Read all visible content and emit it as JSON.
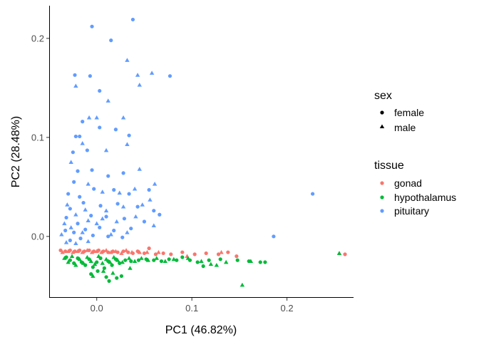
{
  "chart_data": {
    "type": "scatter",
    "title": "",
    "xlabel": "PC1 (46.82%)",
    "ylabel": "PC2 (28.48%)",
    "xlim": [
      -0.05,
      0.27
    ],
    "ylim": [
      -0.062,
      0.233
    ],
    "x_ticks": [
      0.0,
      0.1,
      0.2
    ],
    "x_tick_labels": [
      "0.0",
      "0.1",
      "0.2"
    ],
    "y_ticks": [
      0.0,
      0.1,
      0.2
    ],
    "y_tick_labels": [
      "0.0",
      "0.1",
      "0.2"
    ],
    "grid": false,
    "legend_position": "right",
    "colors": {
      "gonad": "#F8766D",
      "hypothalamus": "#00BA38",
      "pituitary": "#619CFF"
    },
    "shape_legend": {
      "title": "sex",
      "items": [
        {
          "label": "female",
          "shape": "circle"
        },
        {
          "label": "male",
          "shape": "triangle"
        }
      ]
    },
    "color_legend": {
      "title": "tissue",
      "items": [
        "gonad",
        "hypothalamus",
        "pituitary"
      ]
    },
    "series": [
      {
        "tissue": "pituitary",
        "sex": "female",
        "points": [
          [
            -0.005,
            0.212
          ],
          [
            0.015,
            0.198
          ],
          [
            0.038,
            0.219
          ],
          [
            0.077,
            0.162
          ],
          [
            -0.023,
            0.163
          ],
          [
            -0.007,
            0.162
          ],
          [
            0.003,
            0.147
          ],
          [
            -0.015,
            0.116
          ],
          [
            -0.022,
            0.101
          ],
          [
            -0.018,
            0.101
          ],
          [
            -0.025,
            0.085
          ],
          [
            0.003,
            0.11
          ],
          [
            0.02,
            0.108
          ],
          [
            0.034,
            0.102
          ],
          [
            -0.01,
            0.087
          ],
          [
            -0.02,
            0.066
          ],
          [
            -0.024,
            0.055
          ],
          [
            -0.005,
            0.067
          ],
          [
            0.012,
            0.061
          ],
          [
            0.028,
            0.064
          ],
          [
            -0.03,
            0.043
          ],
          [
            -0.018,
            0.04
          ],
          [
            -0.003,
            0.048
          ],
          [
            0.018,
            0.047
          ],
          [
            0.034,
            0.043
          ],
          [
            0.055,
            0.047
          ],
          [
            -0.028,
            0.028
          ],
          [
            -0.014,
            0.034
          ],
          [
            0.004,
            0.031
          ],
          [
            0.022,
            0.033
          ],
          [
            0.043,
            0.03
          ],
          [
            0.06,
            0.026
          ],
          [
            -0.032,
            0.019
          ],
          [
            -0.02,
            0.013
          ],
          [
            -0.006,
            0.021
          ],
          [
            0.01,
            0.02
          ],
          [
            0.029,
            0.018
          ],
          [
            0.05,
            0.015
          ],
          [
            0.066,
            0.022
          ],
          [
            -0.033,
            0.006
          ],
          [
            -0.024,
            0.004
          ],
          [
            -0.012,
            0.007
          ],
          [
            0.003,
            0.009
          ],
          [
            0.018,
            0.006
          ],
          [
            0.036,
            0.008
          ],
          [
            -0.028,
            -0.004
          ],
          [
            -0.017,
            -0.002
          ],
          [
            -0.004,
            0.001
          ],
          [
            0.012,
            0.0
          ],
          [
            0.027,
            -0.001
          ],
          [
            0.227,
            0.043
          ],
          [
            0.186,
            0.0
          ]
        ]
      },
      {
        "tissue": "pituitary",
        "sex": "male",
        "points": [
          [
            0.032,
            0.178
          ],
          [
            -0.022,
            0.152
          ],
          [
            0.012,
            0.137
          ],
          [
            0.043,
            0.163
          ],
          [
            0.058,
            0.165
          ],
          [
            0.045,
            0.153
          ],
          [
            0.0,
            0.12
          ],
          [
            -0.008,
            0.12
          ],
          [
            0.028,
            0.12
          ],
          [
            -0.015,
            0.094
          ],
          [
            0.01,
            0.087
          ],
          [
            0.032,
            0.093
          ],
          [
            0.045,
            0.068
          ],
          [
            -0.027,
            0.075
          ],
          [
            -0.009,
            0.053
          ],
          [
            0.006,
            0.045
          ],
          [
            0.024,
            0.044
          ],
          [
            0.04,
            0.048
          ],
          [
            0.056,
            0.037
          ],
          [
            0.061,
            0.053
          ],
          [
            -0.031,
            0.032
          ],
          [
            -0.012,
            0.027
          ],
          [
            0.01,
            0.026
          ],
          [
            0.028,
            0.03
          ],
          [
            0.048,
            0.032
          ],
          [
            -0.034,
            0.013
          ],
          [
            -0.022,
            0.022
          ],
          [
            -0.009,
            0.016
          ],
          [
            0.006,
            0.018
          ],
          [
            0.021,
            0.015
          ],
          [
            0.041,
            0.02
          ],
          [
            0.06,
            0.011
          ],
          [
            -0.037,
            0.002
          ],
          [
            -0.027,
            0.009
          ],
          [
            -0.015,
            0.004
          ],
          [
            0.0,
            0.013
          ],
          [
            0.015,
            0.002
          ],
          [
            0.032,
            0.004
          ],
          [
            -0.032,
            -0.006
          ],
          [
            -0.022,
            -0.007
          ],
          [
            -0.009,
            -0.005
          ]
        ]
      },
      {
        "tissue": "gonad",
        "sex": "female",
        "points": [
          [
            -0.038,
            -0.014
          ],
          [
            -0.033,
            -0.015
          ],
          [
            -0.028,
            -0.014
          ],
          [
            -0.023,
            -0.015
          ],
          [
            -0.018,
            -0.014
          ],
          [
            -0.013,
            -0.015
          ],
          [
            -0.008,
            -0.014
          ],
          [
            -0.003,
            -0.015
          ],
          [
            0.002,
            -0.014
          ],
          [
            0.007,
            -0.015
          ],
          [
            0.012,
            -0.016
          ],
          [
            0.017,
            -0.015
          ],
          [
            0.022,
            -0.016
          ],
          [
            0.028,
            -0.015
          ],
          [
            0.033,
            -0.016
          ],
          [
            0.038,
            -0.017
          ],
          [
            0.043,
            -0.015
          ],
          [
            0.05,
            -0.017
          ],
          [
            0.055,
            -0.012
          ],
          [
            0.062,
            -0.018
          ],
          [
            0.07,
            -0.017
          ],
          [
            0.078,
            -0.018
          ],
          [
            0.09,
            -0.016
          ],
          [
            0.103,
            -0.018
          ],
          [
            0.115,
            -0.017
          ],
          [
            0.128,
            -0.018
          ],
          [
            0.138,
            -0.016
          ],
          [
            0.147,
            -0.02
          ],
          [
            0.261,
            -0.018
          ]
        ]
      },
      {
        "tissue": "gonad",
        "sex": "male",
        "points": [
          [
            -0.036,
            -0.016
          ],
          [
            -0.03,
            -0.015
          ],
          [
            -0.025,
            -0.016
          ],
          [
            -0.02,
            -0.015
          ],
          [
            -0.015,
            -0.016
          ],
          [
            -0.01,
            -0.014
          ],
          [
            -0.005,
            -0.016
          ],
          [
            0.0,
            -0.015
          ],
          [
            0.005,
            -0.016
          ],
          [
            0.01,
            -0.014
          ],
          [
            0.015,
            -0.016
          ],
          [
            0.02,
            -0.015
          ],
          [
            0.026,
            -0.017
          ],
          [
            0.031,
            -0.014
          ],
          [
            0.037,
            -0.016
          ],
          [
            0.045,
            -0.016
          ],
          [
            0.053,
            -0.016
          ],
          [
            0.065,
            -0.016
          ],
          [
            0.095,
            -0.02
          ],
          [
            0.131,
            -0.016
          ],
          [
            0.255,
            -0.017
          ]
        ]
      },
      {
        "tissue": "hypothalamus",
        "sex": "female",
        "points": [
          [
            -0.032,
            -0.021
          ],
          [
            -0.028,
            -0.024
          ],
          [
            -0.024,
            -0.027
          ],
          [
            -0.02,
            -0.022
          ],
          [
            -0.016,
            -0.026
          ],
          [
            -0.012,
            -0.029
          ],
          [
            -0.008,
            -0.023
          ],
          [
            -0.004,
            -0.031
          ],
          [
            0.0,
            -0.026
          ],
          [
            0.004,
            -0.022
          ],
          [
            0.008,
            -0.032
          ],
          [
            0.012,
            -0.025
          ],
          [
            0.016,
            -0.029
          ],
          [
            0.02,
            -0.023
          ],
          [
            0.024,
            -0.027
          ],
          [
            0.03,
            -0.024
          ],
          [
            0.036,
            -0.025
          ],
          [
            0.044,
            -0.024
          ],
          [
            0.052,
            -0.023
          ],
          [
            0.06,
            -0.024
          ],
          [
            0.068,
            -0.025
          ],
          [
            0.076,
            -0.023
          ],
          [
            0.084,
            -0.024
          ],
          [
            0.09,
            -0.021
          ],
          [
            0.098,
            -0.024
          ],
          [
            0.106,
            -0.026
          ],
          [
            0.118,
            -0.024
          ],
          [
            0.13,
            -0.023
          ],
          [
            0.148,
            -0.024
          ],
          [
            0.16,
            -0.025
          ],
          [
            0.172,
            -0.026
          ],
          [
            0.177,
            -0.026
          ],
          [
            0.001,
            -0.035
          ],
          [
            -0.006,
            -0.038
          ],
          [
            0.01,
            -0.041
          ],
          [
            0.013,
            -0.045
          ],
          [
            0.021,
            -0.042
          ],
          [
            0.026,
            -0.04
          ],
          [
            0.112,
            -0.03
          ]
        ]
      },
      {
        "tissue": "hypothalamus",
        "sex": "male",
        "points": [
          [
            -0.034,
            -0.022
          ],
          [
            -0.03,
            -0.026
          ],
          [
            -0.026,
            -0.02
          ],
          [
            -0.022,
            -0.029
          ],
          [
            -0.018,
            -0.023
          ],
          [
            -0.014,
            -0.027
          ],
          [
            -0.01,
            -0.021
          ],
          [
            -0.006,
            -0.025
          ],
          [
            -0.002,
            -0.028
          ],
          [
            0.002,
            -0.02
          ],
          [
            0.006,
            -0.027
          ],
          [
            0.01,
            -0.023
          ],
          [
            0.014,
            -0.026
          ],
          [
            0.018,
            -0.021
          ],
          [
            0.022,
            -0.024
          ],
          [
            0.027,
            -0.026
          ],
          [
            0.034,
            -0.022
          ],
          [
            0.04,
            -0.025
          ],
          [
            0.047,
            -0.022
          ],
          [
            0.054,
            -0.024
          ],
          [
            0.063,
            -0.022
          ],
          [
            0.072,
            -0.025
          ],
          [
            0.081,
            -0.023
          ],
          [
            0.096,
            -0.022
          ],
          [
            0.11,
            -0.025
          ],
          [
            0.12,
            -0.028
          ],
          [
            0.126,
            -0.029
          ],
          [
            0.136,
            -0.026
          ],
          [
            0.162,
            -0.025
          ],
          [
            0.153,
            -0.049
          ],
          [
            -0.004,
            -0.04
          ],
          [
            0.007,
            -0.035
          ],
          [
            0.017,
            -0.037
          ],
          [
            0.035,
            -0.032
          ],
          [
            0.255,
            -0.017
          ]
        ]
      }
    ]
  }
}
